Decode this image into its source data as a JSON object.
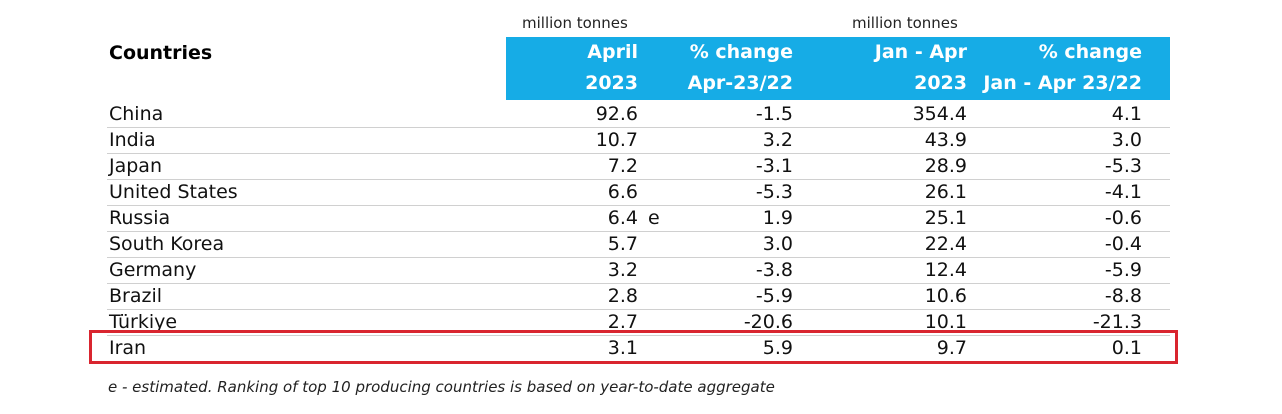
{
  "units": {
    "left": "million tonnes",
    "right": "million tonnes"
  },
  "header": {
    "countries": "Countries",
    "col1": [
      "April",
      "2023"
    ],
    "col2": [
      "% change",
      "Apr-23/22"
    ],
    "col3": [
      "Jan - Apr",
      "2023"
    ],
    "col4": [
      "% change",
      "Jan - Apr 23/22"
    ]
  },
  "rows": [
    {
      "country": "China",
      "april": "92.6",
      "flag": "",
      "chg": "-1.5",
      "ytd": "354.4",
      "ytd_chg": "4.1"
    },
    {
      "country": "India",
      "april": "10.7",
      "flag": "",
      "chg": "3.2",
      "ytd": "43.9",
      "ytd_chg": "3.0"
    },
    {
      "country": "Japan",
      "april": "7.2",
      "flag": "",
      "chg": "-3.1",
      "ytd": "28.9",
      "ytd_chg": "-5.3"
    },
    {
      "country": "United States",
      "april": "6.6",
      "flag": "",
      "chg": "-5.3",
      "ytd": "26.1",
      "ytd_chg": "-4.1"
    },
    {
      "country": "Russia",
      "april": "6.4",
      "flag": "e",
      "chg": "1.9",
      "ytd": "25.1",
      "ytd_chg": "-0.6"
    },
    {
      "country": "South Korea",
      "april": "5.7",
      "flag": "",
      "chg": "3.0",
      "ytd": "22.4",
      "ytd_chg": "-0.4"
    },
    {
      "country": "Germany",
      "april": "3.2",
      "flag": "",
      "chg": "-3.8",
      "ytd": "12.4",
      "ytd_chg": "-5.9"
    },
    {
      "country": "Brazil",
      "april": "2.8",
      "flag": "",
      "chg": "-5.9",
      "ytd": "10.6",
      "ytd_chg": "-8.8"
    },
    {
      "country": "Türkiye",
      "april": "2.7",
      "flag": "",
      "chg": "-20.6",
      "ytd": "10.1",
      "ytd_chg": "-21.3"
    },
    {
      "country": "Iran",
      "april": "3.1",
      "flag": "",
      "chg": "5.9",
      "ytd": "9.7",
      "ytd_chg": "0.1"
    }
  ],
  "footnote": "e - estimated. Ranking of top 10 producing countries is based on year-to-date aggregate",
  "colors": {
    "header_band": "#16ace6",
    "highlight": "#d9252f"
  }
}
